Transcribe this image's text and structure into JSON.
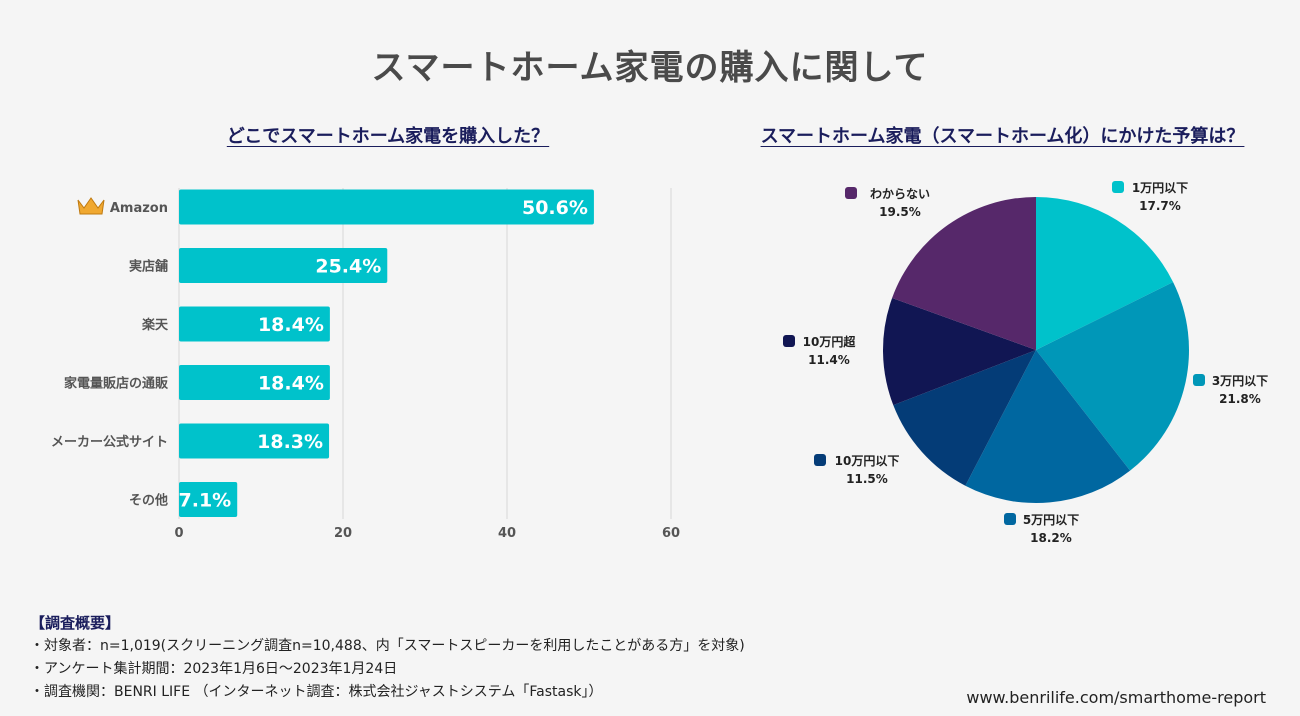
{
  "title": "スマートホーム家電の購入に関して",
  "bar_chart_title": "どこでスマートホーム家電を購入した？",
  "pie_chart_title": "スマートホーム家電（スマートホーム化）にかけた予算は？",
  "chart_data": [
    {
      "type": "bar",
      "orientation": "horizontal",
      "title": "どこでスマートホーム家電を購入した？",
      "categories": [
        "Amazon",
        "実店舗",
        "楽天",
        "家電量販店の通販",
        "メーカー公式サイト",
        "その他"
      ],
      "values": [
        50.6,
        25.4,
        18.4,
        18.4,
        18.3,
        7.1
      ],
      "value_labels": [
        "50.6%",
        "25.4%",
        "18.4%",
        "18.4%",
        "18.3%",
        "7.1%"
      ],
      "xlim": [
        0,
        60
      ],
      "xticks": [
        "0",
        "20",
        "40",
        "60"
      ],
      "grid": true,
      "color": "#00c2cb"
    },
    {
      "type": "pie",
      "title": "スマートホーム家電（スマートホーム化）にかけた予算は？",
      "slices": [
        {
          "label": "1万円以下",
          "value": 17.7,
          "value_label": "17.7%",
          "color": "#00c2cb"
        },
        {
          "label": "3万円以下",
          "value": 21.8,
          "value_label": "21.8%",
          "color": "#0097b8"
        },
        {
          "label": "5万円以下",
          "value": 18.2,
          "value_label": "18.2%",
          "color": "#0067a0"
        },
        {
          "label": "10万円以下",
          "value": 11.5,
          "value_label": "11.5%",
          "color": "#043c77"
        },
        {
          "label": "10万円超",
          "value": 11.4,
          "value_label": "11.4%",
          "color": "#111653"
        },
        {
          "label": "わからない",
          "value": 19.5,
          "value_label": "19.5%",
          "color": "#56286a"
        }
      ],
      "start_angle_deg": -90,
      "direction": "clockwise"
    }
  ],
  "crown_color": "#f0a830",
  "footer": {
    "heading": "【調査概要】",
    "lines": [
      "・対象者：n=1,019(スクリーニング調査n=10,488、内「スマートスピーカーを利用したことがある方」を対象)",
      "・アンケート集計期間：2023年1月6日〜2023年1月24日",
      "・調査機関：BENRI LIFE （インターネット調査：株式会社ジャストシステム「Fastask」）"
    ]
  },
  "url": "www.benrilife.com/smarthome-report"
}
